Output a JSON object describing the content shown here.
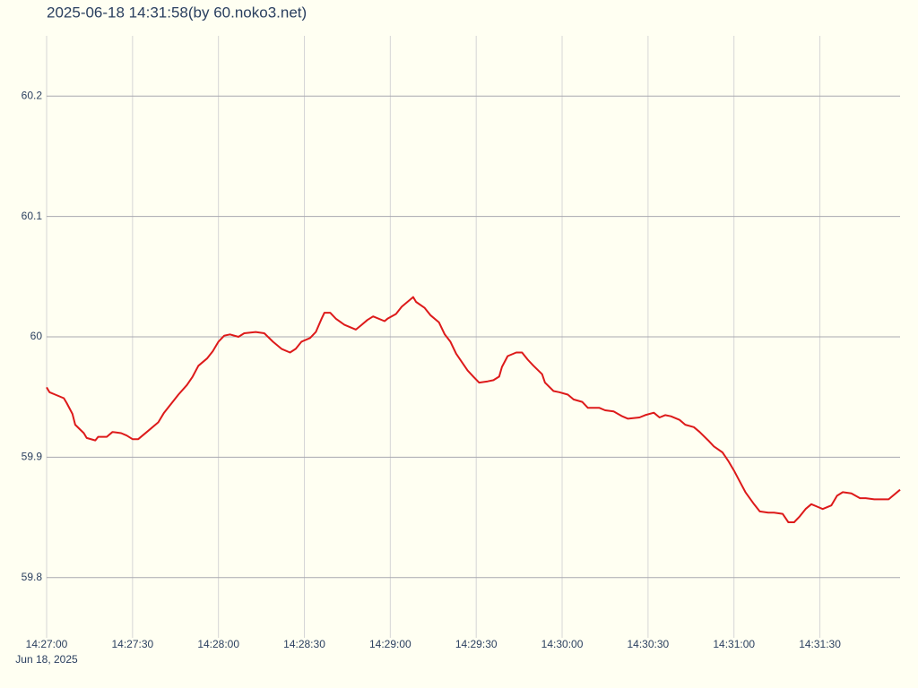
{
  "chart_data": {
    "type": "line",
    "title": "2025-06-18 14:31:58(by 60.noko3.net)",
    "date": "Jun 18, 2025",
    "color": "#dd1a1a",
    "grid": true,
    "x": [
      "14:27:00",
      "14:27:01",
      "14:27:03",
      "14:27:06",
      "14:27:07",
      "14:27:09",
      "14:27:10",
      "14:27:13",
      "14:27:14",
      "14:27:17",
      "14:27:18",
      "14:27:21",
      "14:27:23",
      "14:27:26",
      "14:27:28",
      "14:27:30",
      "14:27:32",
      "14:27:35",
      "14:27:39",
      "14:27:41",
      "14:27:44",
      "14:27:46",
      "14:27:49",
      "14:27:51",
      "14:27:53",
      "14:27:56",
      "14:27:58",
      "14:28:00",
      "14:28:02",
      "14:28:04",
      "14:28:07",
      "14:28:09",
      "14:28:13",
      "14:28:16",
      "14:28:19",
      "14:28:22",
      "14:28:25",
      "14:28:27",
      "14:28:29",
      "14:28:32",
      "14:28:34",
      "14:28:36",
      "14:28:37",
      "14:28:39",
      "14:28:41",
      "14:28:44",
      "14:28:48",
      "14:28:50",
      "14:28:52",
      "14:28:54",
      "14:28:58",
      "14:28:59",
      "14:29:02",
      "14:29:04",
      "14:29:08",
      "14:29:09",
      "14:29:12",
      "14:29:14",
      "14:29:17",
      "14:29:19",
      "14:29:21",
      "14:29:23",
      "14:29:25",
      "14:29:27",
      "14:29:29",
      "14:29:31",
      "14:29:34",
      "14:29:36",
      "14:29:38",
      "14:29:39",
      "14:29:41",
      "14:29:44",
      "14:29:46",
      "14:29:48",
      "14:29:50",
      "14:29:53",
      "14:29:54",
      "14:29:57",
      "14:29:59",
      "14:30:02",
      "14:30:04",
      "14:30:07",
      "14:30:09",
      "14:30:13",
      "14:30:15",
      "14:30:18",
      "14:30:21",
      "14:30:23",
      "14:30:27",
      "14:30:29",
      "14:30:32",
      "14:30:34",
      "14:30:36",
      "14:30:38",
      "14:30:41",
      "14:30:43",
      "14:30:46",
      "14:30:48",
      "14:30:51",
      "14:30:53",
      "14:30:56",
      "14:30:58",
      "14:31:00",
      "14:31:02",
      "14:31:04",
      "14:31:07",
      "14:31:09",
      "14:31:12",
      "14:31:14",
      "14:31:17",
      "14:31:19",
      "14:31:21",
      "14:31:23",
      "14:31:25",
      "14:31:27",
      "14:31:29",
      "14:31:31",
      "14:31:34",
      "14:31:36",
      "14:31:38",
      "14:31:41",
      "14:31:44",
      "14:31:46",
      "14:31:49",
      "14:31:52",
      "14:31:54",
      "14:31:58"
    ],
    "values": [
      59.958,
      59.954,
      59.952,
      59.949,
      59.945,
      59.936,
      59.927,
      59.92,
      59.916,
      59.914,
      59.917,
      59.917,
      59.921,
      59.92,
      59.918,
      59.915,
      59.915,
      59.921,
      59.929,
      59.937,
      59.946,
      59.952,
      59.96,
      59.967,
      59.976,
      59.982,
      59.988,
      59.996,
      60.001,
      60.002,
      60.0,
      60.003,
      60.004,
      60.003,
      59.996,
      59.99,
      59.987,
      59.99,
      59.996,
      59.999,
      60.004,
      60.015,
      60.02,
      60.02,
      60.015,
      60.01,
      60.006,
      60.01,
      60.014,
      60.017,
      60.013,
      60.015,
      60.019,
      60.025,
      60.033,
      60.029,
      60.024,
      60.018,
      60.012,
      60.002,
      59.996,
      59.986,
      59.979,
      59.972,
      59.967,
      59.962,
      59.963,
      59.964,
      59.967,
      59.975,
      59.984,
      59.987,
      59.987,
      59.981,
      59.976,
      59.969,
      59.962,
      59.955,
      59.954,
      59.952,
      59.948,
      59.946,
      59.941,
      59.941,
      59.939,
      59.938,
      59.934,
      59.932,
      59.933,
      59.935,
      59.937,
      59.933,
      59.935,
      59.934,
      59.931,
      59.927,
      59.925,
      59.921,
      59.914,
      59.909,
      59.904,
      59.897,
      59.889,
      59.88,
      59.871,
      59.861,
      59.855,
      59.854,
      59.854,
      59.853,
      59.846,
      59.846,
      59.851,
      59.857,
      59.861,
      59.859,
      59.857,
      59.86,
      59.868,
      59.871,
      59.87,
      59.866,
      59.866,
      59.865,
      59.865,
      59.865,
      59.873
    ],
    "xlim": [
      "14:27:00",
      "14:31:58"
    ],
    "xticks": [
      "14:27:00",
      "14:27:30",
      "14:28:00",
      "14:28:30",
      "14:29:00",
      "14:29:30",
      "14:30:00",
      "14:30:30",
      "14:31:00",
      "14:31:30"
    ],
    "ylim": [
      59.75,
      60.25
    ],
    "yticks": [
      59.8,
      59.9,
      60,
      60.1,
      60.2
    ]
  }
}
